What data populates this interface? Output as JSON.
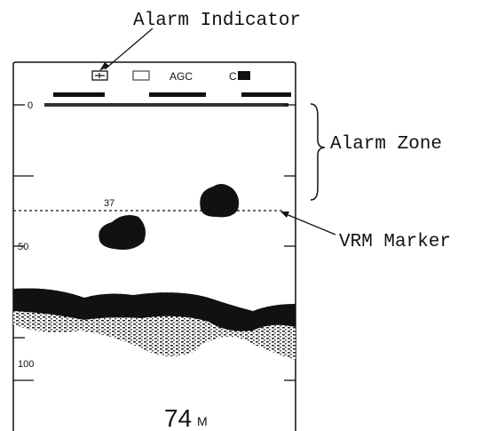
{
  "callouts": {
    "alarm_indicator": "Alarm Indicator",
    "alarm_zone": "Alarm Zone",
    "vrm_marker": "VRM Marker"
  },
  "screen": {
    "status": {
      "agc": "AGC",
      "clutter": "C"
    },
    "scale": {
      "top": "0",
      "middle": "50",
      "bottom": "100"
    },
    "vrm_depth": "37",
    "depth": {
      "value": "74",
      "unit": "M"
    }
  }
}
